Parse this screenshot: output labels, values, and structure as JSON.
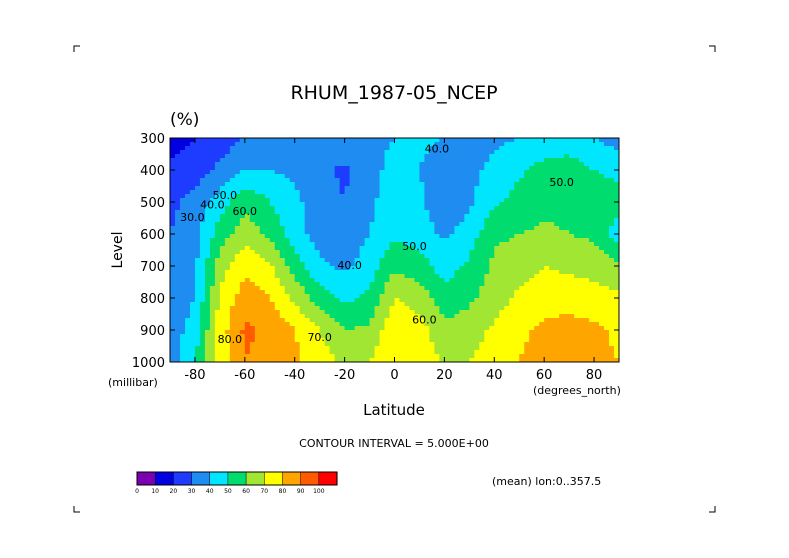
{
  "chart_data": {
    "type": "heatmap",
    "title": "RHUM_1987-05_NCEP",
    "units_label": "(%)",
    "xlabel": "Latitude",
    "xunits": "(degrees_north)",
    "ylabel": "Level",
    "yunits": "(millibar)",
    "xlim": [
      -90,
      90
    ],
    "ylim": [
      1000,
      300
    ],
    "x_ticks": [
      "-80",
      "-60",
      "-40",
      "-20",
      "0",
      "20",
      "40",
      "60",
      "80"
    ],
    "x_tick_values": [
      -80,
      -60,
      -40,
      -20,
      0,
      20,
      40,
      60,
      80
    ],
    "y_ticks": [
      "300",
      "400",
      "500",
      "600",
      "700",
      "800",
      "900",
      "1000"
    ],
    "y_tick_values": [
      300,
      400,
      500,
      600,
      700,
      800,
      900,
      1000
    ],
    "contour_interval_text": "CONTOUR INTERVAL = 5.000E+00",
    "mean_text": "(mean) lon:0..357.5",
    "colorbar": {
      "levels": [
        "0",
        "10",
        "20",
        "30",
        "40",
        "50",
        "60",
        "70",
        "80",
        "90",
        "100"
      ],
      "colors": [
        "#7a00b0",
        "#0000e0",
        "#1e3cff",
        "#1e8cf0",
        "#00e6ff",
        "#00dc6e",
        "#a0e632",
        "#ffff00",
        "#ffa500",
        "#ff5a00",
        "#ff0000"
      ]
    },
    "contour_labels": [
      {
        "text": "40.0",
        "lat": 17,
        "lev": 345
      },
      {
        "text": "50.0",
        "lat": 67,
        "lev": 450
      },
      {
        "text": "30.0",
        "lat": -81,
        "lev": 560
      },
      {
        "text": "40.0",
        "lat": -73,
        "lev": 520
      },
      {
        "text": "50.0",
        "lat": -68,
        "lev": 490
      },
      {
        "text": "60.0",
        "lat": -60,
        "lev": 540
      },
      {
        "text": "50.0",
        "lat": 8,
        "lev": 650
      },
      {
        "text": "40.0",
        "lat": -18,
        "lev": 710
      },
      {
        "text": "70.0",
        "lat": -30,
        "lev": 935
      },
      {
        "text": "60.0",
        "lat": 12,
        "lev": 880
      },
      {
        "text": "80.0",
        "lat": -66,
        "lev": 940
      }
    ],
    "field": {
      "lat": [
        -90,
        -80,
        -70,
        -60,
        -50,
        -40,
        -30,
        -20,
        -10,
        0,
        10,
        20,
        30,
        40,
        50,
        60,
        70,
        80,
        90
      ],
      "lev": [
        300,
        400,
        500,
        600,
        700,
        800,
        900,
        1000
      ],
      "rh": [
        [
          15,
          20,
          25,
          30,
          32,
          32,
          35,
          37,
          38,
          40,
          42,
          40,
          38,
          38,
          40,
          42,
          44,
          40,
          35
        ],
        [
          22,
          26,
          32,
          40,
          40,
          38,
          33,
          28,
          38,
          42,
          40,
          35,
          38,
          42,
          48,
          54,
          55,
          50,
          48
        ],
        [
          28,
          33,
          45,
          58,
          50,
          42,
          35,
          30,
          38,
          45,
          42,
          32,
          38,
          48,
          54,
          57,
          57,
          55,
          53
        ],
        [
          30,
          36,
          55,
          65,
          58,
          45,
          35,
          33,
          40,
          48,
          45,
          38,
          45,
          58,
          60,
          62,
          60,
          58,
          45
        ],
        [
          30,
          38,
          65,
          78,
          72,
          55,
          42,
          38,
          45,
          58,
          55,
          45,
          52,
          62,
          66,
          70,
          68,
          66,
          62
        ],
        [
          32,
          40,
          72,
          85,
          80,
          68,
          55,
          48,
          52,
          70,
          65,
          55,
          58,
          65,
          72,
          76,
          76,
          74,
          72
        ],
        [
          34,
          45,
          75,
          92,
          88,
          80,
          70,
          60,
          62,
          78,
          75,
          62,
          65,
          72,
          78,
          82,
          84,
          82,
          78
        ],
        [
          35,
          50,
          75,
          90,
          85,
          82,
          75,
          68,
          70,
          80,
          78,
          68,
          70,
          76,
          80,
          84,
          85,
          83,
          80
        ]
      ]
    }
  }
}
